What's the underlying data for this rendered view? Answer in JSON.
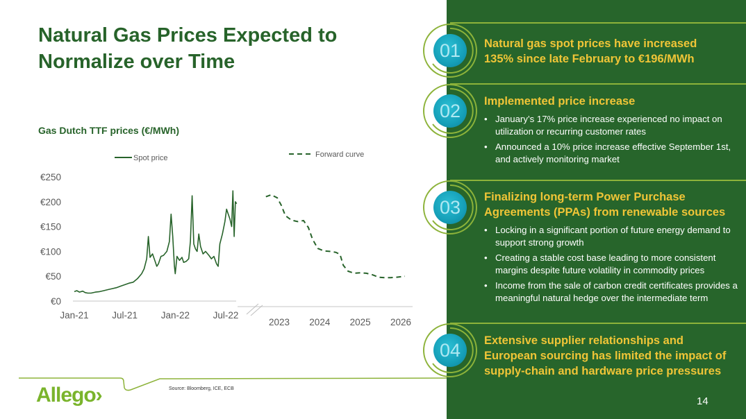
{
  "slide": {
    "title": "Natural Gas Prices Expected to Normalize over Time",
    "page_number": "14",
    "source": "Source:   Bloomberg, ICE, ECB",
    "logo_text": "Allego›"
  },
  "colors": {
    "primary_green": "#27632a",
    "panel_green": "#27652b",
    "accent_yellow": "#f0c537",
    "accent_lime": "#8db33a",
    "badge_teal": "#159fb8",
    "logo_green": "#7ab42c"
  },
  "sections": [
    {
      "number": "01",
      "title": "Natural gas spot prices have increased 135% since late February to €196/MWh",
      "bullets": []
    },
    {
      "number": "02",
      "title": "Implemented price increase",
      "bullets": [
        "January’s 17% price increase experienced no impact on utilization or recurring customer rates",
        "Announced a 10% price increase effective September 1st, and actively monitoring market"
      ]
    },
    {
      "number": "03",
      "title": "Finalizing long-term Power Purchase Agreements (PPAs) from renewable sources",
      "bullets": [
        "Locking in a significant portion of future energy demand to support strong growth",
        "Creating a stable cost base leading to more consistent margins despite future volatility in commodity prices",
        "Income from the sale of carbon credit certificates provides a meaningful natural hedge over the intermediate term"
      ]
    },
    {
      "number": "04",
      "title": "Extensive supplier relationships and European sourcing has limited the impact of supply-chain and  hardware price pressures",
      "bullets": []
    }
  ],
  "chart_data": {
    "type": "line",
    "title": "Gas Dutch TTF prices (€/MWh)",
    "xlabel": "",
    "ylabel": "",
    "ylim": [
      0,
      250
    ],
    "yticks": [
      "€0",
      "€50",
      "€100",
      "€150",
      "€200",
      "€250"
    ],
    "ytick_values": [
      0,
      50,
      100,
      150,
      200,
      250
    ],
    "grid": false,
    "legend": [
      {
        "name": "Spot price",
        "style": "solid"
      },
      {
        "name": "Forward curve",
        "style": "dashed"
      }
    ],
    "legend_position": "top",
    "axis_break": "between Jul-22 and 2023",
    "series": [
      {
        "name": "Spot price",
        "x_ticks": [
          "Jan-21",
          "Jul-21",
          "Jan-22",
          "Jul-22"
        ],
        "x_range_months": [
          0,
          20
        ],
        "points": [
          [
            0,
            19
          ],
          [
            0.3,
            21
          ],
          [
            0.6,
            18
          ],
          [
            1,
            20
          ],
          [
            1.3,
            17
          ],
          [
            1.6,
            16
          ],
          [
            2,
            16
          ],
          [
            2.5,
            18
          ],
          [
            3,
            19
          ],
          [
            3.5,
            21
          ],
          [
            4,
            23
          ],
          [
            4.5,
            25
          ],
          [
            5,
            27
          ],
          [
            5.5,
            30
          ],
          [
            6,
            33
          ],
          [
            6.5,
            36
          ],
          [
            7,
            38
          ],
          [
            7.5,
            45
          ],
          [
            8,
            55
          ],
          [
            8.3,
            65
          ],
          [
            8.6,
            85
          ],
          [
            8.8,
            130
          ],
          [
            9,
            88
          ],
          [
            9.3,
            95
          ],
          [
            9.6,
            80
          ],
          [
            9.8,
            70
          ],
          [
            10,
            75
          ],
          [
            10.3,
            90
          ],
          [
            10.6,
            92
          ],
          [
            11,
            100
          ],
          [
            11.3,
            120
          ],
          [
            11.5,
            175
          ],
          [
            11.7,
            130
          ],
          [
            11.9,
            70
          ],
          [
            12,
            55
          ],
          [
            12.2,
            90
          ],
          [
            12.5,
            82
          ],
          [
            12.8,
            88
          ],
          [
            13,
            78
          ],
          [
            13.3,
            80
          ],
          [
            13.6,
            85
          ],
          [
            13.8,
            120
          ],
          [
            14,
            212
          ],
          [
            14.2,
            115
          ],
          [
            14.4,
            105
          ],
          [
            14.6,
            100
          ],
          [
            14.8,
            135
          ],
          [
            15,
            110
          ],
          [
            15.3,
            95
          ],
          [
            15.6,
            100
          ],
          [
            16,
            92
          ],
          [
            16.3,
            85
          ],
          [
            16.6,
            90
          ],
          [
            16.9,
            75
          ],
          [
            17.1,
            70
          ],
          [
            17.3,
            115
          ],
          [
            17.6,
            135
          ],
          [
            17.9,
            160
          ],
          [
            18.1,
            185
          ],
          [
            18.3,
            175
          ],
          [
            18.5,
            165
          ],
          [
            18.7,
            150
          ],
          [
            18.85,
            222
          ],
          [
            19,
            130
          ],
          [
            19.15,
            200
          ],
          [
            19.3,
            196
          ]
        ]
      },
      {
        "name": "Forward curve",
        "x_ticks": [
          "2023",
          "2024",
          "2025",
          "2026"
        ],
        "x_range_years": [
          2022.67,
          2026.3
        ],
        "points": [
          [
            2022.67,
            210
          ],
          [
            2022.8,
            214
          ],
          [
            2022.95,
            208
          ],
          [
            2023.05,
            193
          ],
          [
            2023.15,
            172
          ],
          [
            2023.3,
            163
          ],
          [
            2023.45,
            160
          ],
          [
            2023.6,
            162
          ],
          [
            2023.72,
            148
          ],
          [
            2023.82,
            125
          ],
          [
            2023.95,
            106
          ],
          [
            2024.1,
            101
          ],
          [
            2024.25,
            100
          ],
          [
            2024.4,
            98
          ],
          [
            2024.5,
            94
          ],
          [
            2024.58,
            72
          ],
          [
            2024.7,
            60
          ],
          [
            2024.85,
            56
          ],
          [
            2025,
            57
          ],
          [
            2025.15,
            56
          ],
          [
            2025.3,
            53
          ],
          [
            2025.45,
            48
          ],
          [
            2025.6,
            47
          ],
          [
            2025.75,
            47
          ],
          [
            2025.9,
            48
          ],
          [
            2026.1,
            50
          ]
        ]
      }
    ]
  }
}
